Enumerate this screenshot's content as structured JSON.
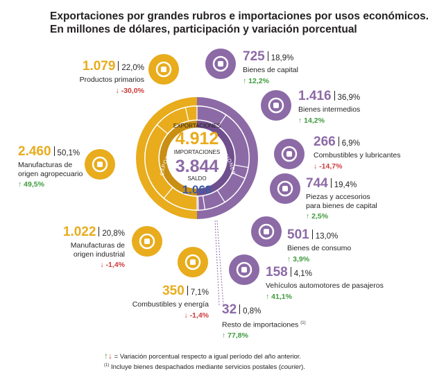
{
  "chart_data": {
    "type": "pie",
    "title": "Exportaciones por grandes rubros e importaciones por usos económicos.",
    "subtitle": "En millones de dólares, participación y variación porcentual",
    "center": {
      "exports_label": "EXPORTACIONES",
      "exports_value": "4.912",
      "imports_label": "IMPORTACIONES",
      "imports_value": "3.844",
      "balance_label": "SALDO",
      "balance_value": "1.068"
    },
    "ring_labels": {
      "exports": "EXPORTACIONES",
      "imports": "IMPORTACIONES"
    },
    "series": [
      {
        "name": "EXPORTACIONES",
        "color": "#e8ac1c",
        "total": 4912,
        "items": [
          {
            "label": "Productos primarios",
            "value": 1079,
            "value_text": "1.079",
            "share": 22.0,
            "share_text": "22,0%",
            "change": -30.0,
            "change_text": "-30,0%",
            "icon": "wheat-icon"
          },
          {
            "label": "Manufacturas de origen agropecuario",
            "value": 2460,
            "value_text": "2.460",
            "share": 50.1,
            "share_text": "50,1%",
            "change": 49.5,
            "change_text": "49,5%",
            "icon": "bottle-icon"
          },
          {
            "label": "Manufacturas de origen industrial",
            "value": 1022,
            "value_text": "1.022",
            "share": 20.8,
            "share_text": "20,8%",
            "change": -1.4,
            "change_text": "-1,4%",
            "icon": "truck-icon"
          },
          {
            "label": "Combustibles y energía",
            "value": 350,
            "value_text": "350",
            "share": 7.1,
            "share_text": "7,1%",
            "change": -1.4,
            "change_text": "-1,4%",
            "icon": "oil-drum-icon"
          }
        ]
      },
      {
        "name": "IMPORTACIONES",
        "color": "#8c6aa6",
        "total": 3844,
        "items": [
          {
            "label": "Bienes de capital",
            "value": 725,
            "value_text": "725",
            "share": 18.9,
            "share_text": "18,9%",
            "change": 12.2,
            "change_text": "12,2%",
            "icon": "tractor-icon"
          },
          {
            "label": "Bienes intermedios",
            "value": 1416,
            "value_text": "1.416",
            "share": 36.9,
            "share_text": "36,9%",
            "change": 14.2,
            "change_text": "14,2%",
            "icon": "flask-icon"
          },
          {
            "label": "Combustibles y lubricantes",
            "value": 266,
            "value_text": "266",
            "share": 6.9,
            "share_text": "6,9%",
            "change": -14.7,
            "change_text": "-14,7%",
            "icon": "fuel-can-icon"
          },
          {
            "label": "Piezas y accesorios para bienes de capital",
            "value": 744,
            "value_text": "744",
            "share": 19.4,
            "share_text": "19,4%",
            "change": 2.5,
            "change_text": "2,5%",
            "icon": "gear-part-icon"
          },
          {
            "label": "Bienes de consumo",
            "value": 501,
            "value_text": "501",
            "share": 13.0,
            "share_text": "13,0%",
            "change": 3.9,
            "change_text": "3,9%",
            "icon": "bicycle-icon"
          },
          {
            "label": "Vehículos automotores de pasajeros",
            "value": 158,
            "value_text": "158",
            "share": 4.1,
            "share_text": "4,1%",
            "change": 41.1,
            "change_text": "41,1%",
            "icon": "car-icon"
          },
          {
            "label": "Resto de importaciones",
            "label_mark": "(1)",
            "value": 32,
            "value_text": "32",
            "share": 0.8,
            "share_text": "0,8%",
            "change": 77.8,
            "change_text": "77,8%",
            "icon": ""
          }
        ]
      }
    ],
    "footnotes": {
      "arrows_note": "Variación porcentual respecto a igual período del año anterior.",
      "note_mark": "(1)",
      "note_text_before": "Incluye bienes despachados mediante servicios postales (",
      "note_text_italic": "courier",
      "note_text_after": ")."
    }
  }
}
